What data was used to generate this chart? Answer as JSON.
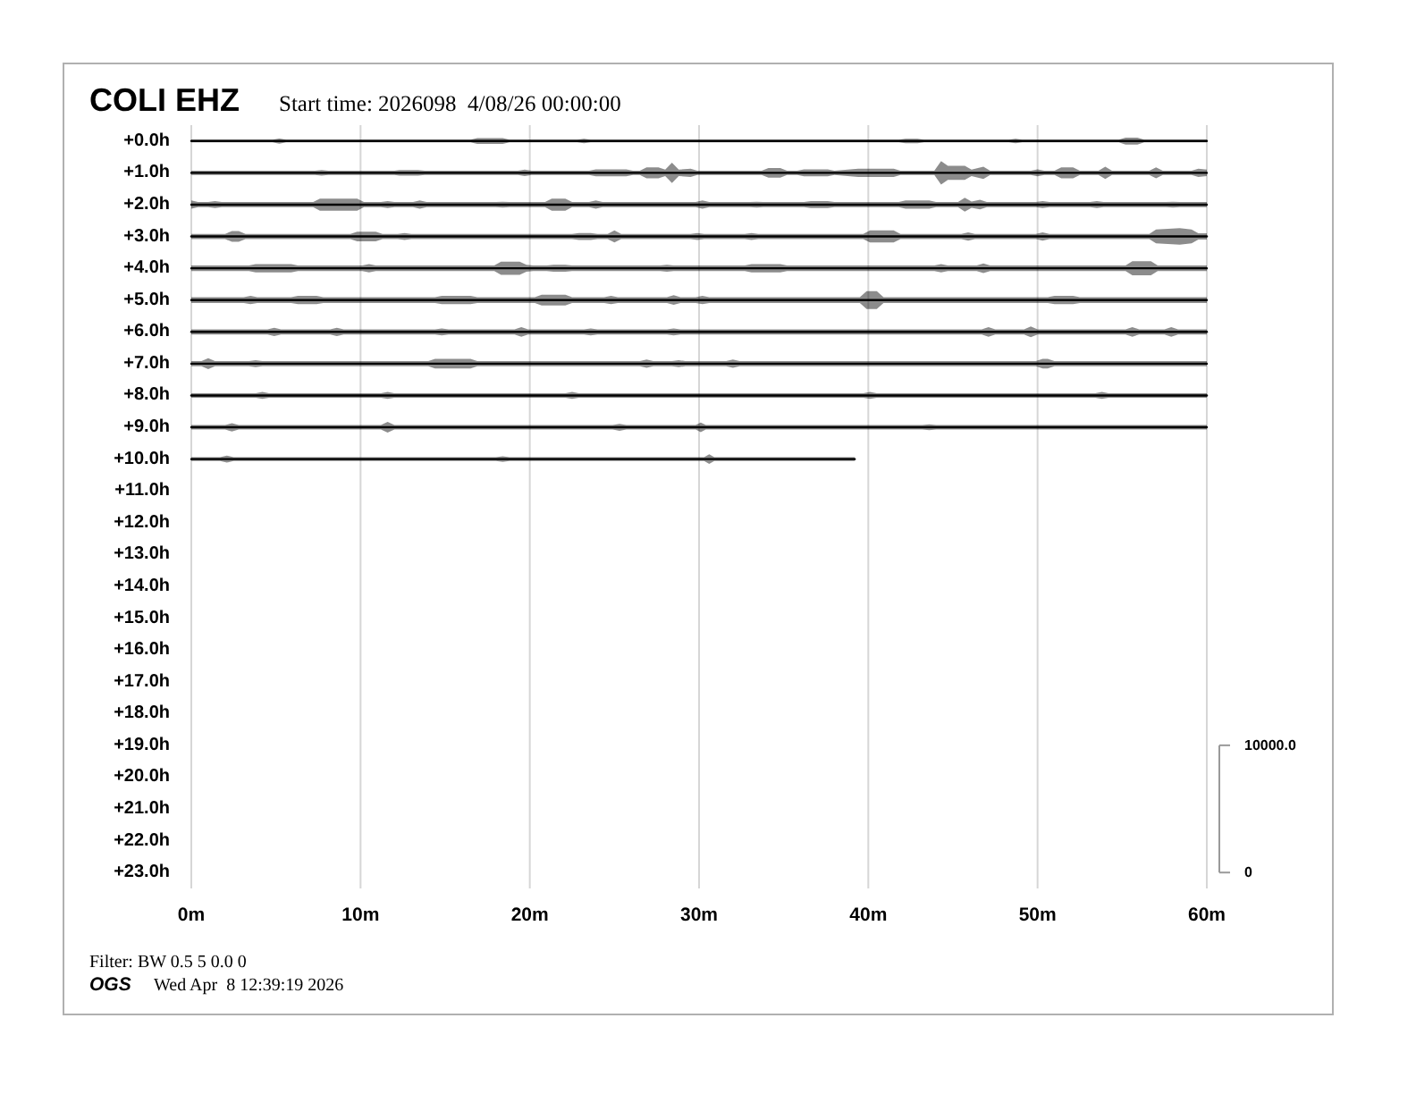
{
  "chart_data": {
    "type": "line",
    "title": "COLI EHZ",
    "subtitle": "Start time: 2026098  4/08/26 00:00:00",
    "annotations": [
      "Filter: BW 0.5 5 0.0 0",
      "OGS",
      "Wed Apr  8 12:39:19 2026"
    ],
    "xlim": [
      0,
      60
    ],
    "xticks": [
      {
        "value": 0,
        "label": "0m"
      },
      {
        "value": 10,
        "label": "10m"
      },
      {
        "value": 20,
        "label": "20m"
      },
      {
        "value": 30,
        "label": "30m"
      },
      {
        "value": 40,
        "label": "40m"
      },
      {
        "value": 50,
        "label": "50m"
      },
      {
        "value": 60,
        "label": "60m"
      }
    ],
    "ylim": [
      23.5,
      -0.5
    ],
    "yticks": [
      {
        "value": 0,
        "label": "+0.0h"
      },
      {
        "value": 1,
        "label": "+1.0h"
      },
      {
        "value": 2,
        "label": "+2.0h"
      },
      {
        "value": 3,
        "label": "+3.0h"
      },
      {
        "value": 4,
        "label": "+4.0h"
      },
      {
        "value": 5,
        "label": "+5.0h"
      },
      {
        "value": 6,
        "label": "+6.0h"
      },
      {
        "value": 7,
        "label": "+7.0h"
      },
      {
        "value": 8,
        "label": "+8.0h"
      },
      {
        "value": 9,
        "label": "+9.0h"
      },
      {
        "value": 10,
        "label": "+10.0h"
      },
      {
        "value": 11,
        "label": "+11.0h"
      },
      {
        "value": 12,
        "label": "+12.0h"
      },
      {
        "value": 13,
        "label": "+13.0h"
      },
      {
        "value": 14,
        "label": "+14.0h"
      },
      {
        "value": 15,
        "label": "+15.0h"
      },
      {
        "value": 16,
        "label": "+16.0h"
      },
      {
        "value": 17,
        "label": "+17.0h"
      },
      {
        "value": 18,
        "label": "+18.0h"
      },
      {
        "value": 19,
        "label": "+19.0h"
      },
      {
        "value": 20,
        "label": "+20.0h"
      },
      {
        "value": 21,
        "label": "+21.0h"
      },
      {
        "value": 22,
        "label": "+22.0h"
      },
      {
        "value": 23,
        "label": "+23.0h"
      }
    ],
    "y2lim": [
      -1250,
      58750
    ],
    "y2ticks": [
      0,
      {
        "value": 10000,
        "label": "10000.0"
      }
    ],
    "grid": "x",
    "series": [
      {
        "color": "#000000",
        "x": [
          0,
          4.8,
          5.2,
          5.6,
          16.5,
          16.9,
          18.4,
          18.8,
          22.8,
          23.2,
          23.6,
          41.8,
          42.2,
          42.9,
          43.3,
          48.3,
          48.7,
          49.1,
          54.8,
          55.2,
          55.9,
          56.3,
          60
        ],
        "values": [
          0,
          0,
          0,
          0,
          0,
          0,
          0,
          0,
          0,
          0,
          0,
          0,
          0,
          0,
          0,
          0,
          0,
          0,
          0,
          0,
          0,
          0,
          0
        ],
        "lower": [
          -0.04,
          -0.04,
          -0.08,
          -0.04,
          -0.04,
          -0.09,
          -0.09,
          -0.04,
          -0.04,
          -0.07,
          -0.04,
          -0.04,
          -0.07,
          -0.07,
          -0.04,
          -0.04,
          -0.07,
          -0.04,
          -0.04,
          -0.11,
          -0.11,
          -0.04,
          -0.04
        ],
        "upper": [
          0.04,
          0.04,
          0.08,
          0.04,
          0.04,
          0.09,
          0.09,
          0.04,
          0.04,
          0.07,
          0.04,
          0.04,
          0.07,
          0.07,
          0.04,
          0.04,
          0.07,
          0.04,
          0.04,
          0.11,
          0.11,
          0.04,
          0.04
        ]
      },
      {
        "color": "#000000",
        "x": [
          0,
          7.3,
          7.7,
          8.1,
          12,
          12.3,
          13.4,
          13.8,
          19.3,
          19.7,
          20.1,
          23.5,
          23.9,
          25.7,
          26.1,
          26.5,
          26.9,
          27.6,
          28,
          28.4,
          28.8,
          29.5,
          29.9,
          33.7,
          34.1,
          34.8,
          35.2,
          35.8,
          36.2,
          37.6,
          38,
          39.4,
          41.5,
          41.9,
          43.9,
          44.3,
          44.7,
          45.7,
          46.1,
          46.8,
          47.2,
          49.6,
          50,
          50.4,
          51,
          51.4,
          52.1,
          52.5,
          53.6,
          54,
          54.4,
          56.6,
          57,
          57.4,
          59.1,
          59.5,
          60
        ],
        "values": [
          1,
          1,
          1,
          1,
          1,
          1,
          1,
          1,
          1,
          1,
          1,
          1,
          1,
          1,
          1,
          1,
          1,
          1,
          1,
          1,
          1,
          1,
          1,
          1,
          1,
          1,
          1,
          1,
          1,
          1,
          1,
          1,
          1,
          1,
          1,
          1,
          1,
          1,
          1,
          1,
          1,
          1,
          1,
          1,
          1,
          1,
          1,
          1,
          1,
          1,
          1,
          1,
          1,
          1,
          1,
          1,
          1
        ],
        "lower": [
          0.93,
          0.93,
          0.91,
          0.93,
          0.93,
          0.91,
          0.91,
          0.93,
          0.93,
          0.9,
          0.93,
          0.93,
          0.89,
          0.89,
          0.93,
          0.93,
          0.83,
          0.83,
          0.9,
          0.68,
          0.9,
          0.87,
          0.93,
          0.93,
          0.85,
          0.85,
          0.93,
          0.93,
          0.89,
          0.89,
          0.93,
          0.87,
          0.87,
          0.93,
          0.93,
          0.63,
          0.78,
          0.78,
          0.9,
          0.81,
          0.93,
          0.93,
          0.89,
          0.93,
          0.93,
          0.83,
          0.83,
          0.93,
          0.93,
          0.81,
          0.93,
          0.93,
          0.83,
          0.93,
          0.93,
          0.87,
          0.9
        ],
        "upper": [
          1.07,
          1.07,
          1.09,
          1.07,
          1.07,
          1.09,
          1.09,
          1.07,
          1.07,
          1.1,
          1.07,
          1.07,
          1.11,
          1.11,
          1.07,
          1.07,
          1.17,
          1.17,
          1.1,
          1.32,
          1.1,
          1.13,
          1.07,
          1.07,
          1.15,
          1.15,
          1.07,
          1.07,
          1.11,
          1.11,
          1.07,
          1.13,
          1.13,
          1.07,
          1.07,
          1.37,
          1.22,
          1.22,
          1.1,
          1.19,
          1.07,
          1.07,
          1.11,
          1.07,
          1.07,
          1.17,
          1.17,
          1.07,
          1.07,
          1.19,
          1.07,
          1.07,
          1.17,
          1.07,
          1.07,
          1.13,
          1.1
        ]
      },
      {
        "color": "#000000",
        "x": [
          0,
          0.4,
          1,
          1.4,
          1.8,
          7.2,
          7.6,
          9.8,
          10.2,
          11.2,
          11.6,
          12,
          13.1,
          13.5,
          13.9,
          18,
          18.4,
          18.8,
          20.9,
          21.3,
          22.1,
          22.5,
          23.5,
          23.9,
          24.3,
          29.8,
          30.2,
          30.6,
          33,
          33.4,
          33.8,
          36.2,
          36.6,
          37.6,
          38,
          41.8,
          42.2,
          43.6,
          44,
          45.3,
          45.7,
          46.1,
          46.6,
          47,
          49.9,
          50.3,
          50.7,
          53.1,
          53.5,
          53.9,
          57.6,
          58,
          58.4,
          60
        ],
        "values": [
          2,
          2,
          2,
          2,
          2,
          2,
          2,
          2,
          2,
          2,
          2,
          2,
          2,
          2,
          2,
          2,
          2,
          2,
          2,
          2,
          2,
          2,
          2,
          2,
          2,
          2,
          2,
          2,
          2,
          2,
          2,
          2,
          2,
          2,
          2,
          2,
          2,
          2,
          2,
          2,
          2,
          2,
          2,
          2,
          2,
          2,
          2,
          2,
          2,
          2,
          2,
          2,
          2,
          2
        ],
        "lower": [
          1.87,
          1.92,
          1.92,
          1.89,
          1.92,
          1.92,
          1.81,
          1.81,
          1.92,
          1.92,
          1.89,
          1.92,
          1.92,
          1.87,
          1.92,
          1.92,
          1.91,
          1.92,
          1.92,
          1.81,
          1.81,
          1.92,
          1.92,
          1.87,
          1.92,
          1.92,
          1.87,
          1.92,
          1.92,
          1.91,
          1.92,
          1.92,
          1.89,
          1.89,
          1.92,
          1.92,
          1.87,
          1.87,
          1.92,
          1.92,
          1.78,
          1.9,
          1.85,
          1.92,
          1.92,
          1.89,
          1.92,
          1.92,
          1.89,
          1.92,
          1.92,
          1.91,
          1.92,
          1.92
        ],
        "upper": [
          2.13,
          2.08,
          2.08,
          2.11,
          2.08,
          2.08,
          2.19,
          2.19,
          2.08,
          2.08,
          2.11,
          2.08,
          2.08,
          2.13,
          2.08,
          2.08,
          2.09,
          2.08,
          2.08,
          2.19,
          2.19,
          2.08,
          2.08,
          2.13,
          2.08,
          2.08,
          2.13,
          2.08,
          2.08,
          2.09,
          2.08,
          2.08,
          2.11,
          2.11,
          2.08,
          2.08,
          2.13,
          2.13,
          2.08,
          2.08,
          2.22,
          2.1,
          2.15,
          2.08,
          2.08,
          2.11,
          2.08,
          2.08,
          2.11,
          2.08,
          2.08,
          2.09,
          2.08,
          2.08
        ]
      },
      {
        "color": "#000000",
        "x": [
          0,
          2,
          2.4,
          2.8,
          3.2,
          9.4,
          9.8,
          10.9,
          11.3,
          12.2,
          12.6,
          13,
          22.5,
          22.9,
          23.6,
          24,
          24.6,
          25,
          25.4,
          29.5,
          29.9,
          30.3,
          32.7,
          33.1,
          33.5,
          39.7,
          40.1,
          41.5,
          41.9,
          45.5,
          45.9,
          46.3,
          49.9,
          50.3,
          50.7,
          56.6,
          57,
          58.4,
          59.1,
          59.5,
          60
        ],
        "values": [
          3,
          3,
          3,
          3,
          3,
          3,
          3,
          3,
          3,
          3,
          3,
          3,
          3,
          3,
          3,
          3,
          3,
          3,
          3,
          3,
          3,
          3,
          3,
          3,
          3,
          3,
          3,
          3,
          3,
          3,
          3,
          3,
          3,
          3,
          3,
          3,
          3,
          3,
          3,
          3,
          3
        ],
        "lower": [
          2.92,
          2.92,
          2.83,
          2.83,
          2.92,
          2.92,
          2.85,
          2.85,
          2.92,
          2.92,
          2.89,
          2.92,
          2.92,
          2.89,
          2.89,
          2.92,
          2.92,
          2.81,
          2.92,
          2.92,
          2.89,
          2.92,
          2.92,
          2.89,
          2.92,
          2.92,
          2.81,
          2.81,
          2.92,
          2.92,
          2.87,
          2.92,
          2.92,
          2.87,
          2.92,
          2.92,
          2.78,
          2.74,
          2.78,
          2.9,
          2.9
        ],
        "upper": [
          3.08,
          3.08,
          3.17,
          3.17,
          3.08,
          3.08,
          3.15,
          3.15,
          3.08,
          3.08,
          3.11,
          3.08,
          3.08,
          3.11,
          3.11,
          3.08,
          3.08,
          3.19,
          3.08,
          3.08,
          3.11,
          3.08,
          3.08,
          3.11,
          3.08,
          3.08,
          3.19,
          3.19,
          3.08,
          3.08,
          3.13,
          3.08,
          3.08,
          3.13,
          3.08,
          3.08,
          3.22,
          3.26,
          3.22,
          3.1,
          3.1
        ]
      },
      {
        "color": "#000000",
        "x": [
          0,
          3.4,
          3.8,
          5.9,
          6.3,
          10.1,
          10.5,
          10.9,
          17.9,
          18.3,
          19.4,
          19.8,
          20.2,
          21,
          21.4,
          22.1,
          22.5,
          27.7,
          28.1,
          28.5,
          32.7,
          33.1,
          34.8,
          35.2,
          43.9,
          44.3,
          44.7,
          46.4,
          46.8,
          47.2,
          55.2,
          55.6,
          56.7,
          57.1,
          60
        ],
        "values": [
          4,
          4,
          4,
          4,
          4,
          4,
          4,
          4,
          4,
          4,
          4,
          4,
          4,
          4,
          4,
          4,
          4,
          4,
          4,
          4,
          4,
          4,
          4,
          4,
          4,
          4,
          4,
          4,
          4,
          4,
          4,
          4,
          4,
          4,
          4
        ],
        "lower": [
          3.91,
          3.91,
          3.87,
          3.87,
          3.91,
          3.91,
          3.87,
          3.91,
          3.91,
          3.79,
          3.79,
          3.89,
          3.91,
          3.91,
          3.89,
          3.89,
          3.91,
          3.91,
          3.89,
          3.91,
          3.91,
          3.87,
          3.87,
          3.91,
          3.91,
          3.87,
          3.91,
          3.91,
          3.85,
          3.91,
          3.91,
          3.78,
          3.78,
          3.91,
          3.91
        ],
        "upper": [
          4.09,
          4.09,
          4.13,
          4.13,
          4.09,
          4.09,
          4.13,
          4.09,
          4.09,
          4.21,
          4.21,
          4.11,
          4.09,
          4.09,
          4.11,
          4.11,
          4.09,
          4.09,
          4.11,
          4.09,
          4.09,
          4.13,
          4.13,
          4.09,
          4.09,
          4.13,
          4.09,
          4.09,
          4.15,
          4.09,
          4.09,
          4.22,
          4.22,
          4.09,
          4.09
        ]
      },
      {
        "color": "#000000",
        "x": [
          0,
          3.1,
          3.5,
          3.9,
          5.9,
          6.3,
          7.4,
          7.8,
          14.4,
          14.8,
          16.5,
          16.9,
          20.3,
          20.7,
          22.1,
          22.5,
          24.4,
          24.8,
          25.2,
          28.1,
          28.5,
          28.9,
          29.8,
          30.2,
          30.6,
          39.5,
          39.9,
          40.5,
          40.9,
          50.6,
          51,
          52.1,
          52.5,
          60
        ],
        "values": [
          5,
          5,
          5,
          5,
          5,
          5,
          5,
          5,
          5,
          5,
          5,
          5,
          5,
          5,
          5,
          5,
          5,
          5,
          5,
          5,
          5,
          5,
          5,
          5,
          5,
          5,
          5,
          5,
          5,
          5,
          5,
          5,
          5,
          5
        ],
        "lower": [
          4.91,
          4.91,
          4.87,
          4.91,
          4.91,
          4.87,
          4.87,
          4.91,
          4.91,
          4.87,
          4.87,
          4.91,
          4.91,
          4.83,
          4.83,
          4.91,
          4.91,
          4.87,
          4.91,
          4.91,
          4.85,
          4.91,
          4.91,
          4.87,
          4.91,
          4.91,
          4.72,
          4.72,
          4.91,
          4.91,
          4.87,
          4.87,
          4.91,
          4.91
        ],
        "upper": [
          5.09,
          5.09,
          5.13,
          5.09,
          5.09,
          5.13,
          5.13,
          5.09,
          5.09,
          5.13,
          5.13,
          5.09,
          5.09,
          5.17,
          5.17,
          5.09,
          5.09,
          5.13,
          5.09,
          5.09,
          5.15,
          5.09,
          5.09,
          5.13,
          5.09,
          5.09,
          5.28,
          5.28,
          5.09,
          5.09,
          5.13,
          5.13,
          5.09,
          5.09
        ]
      },
      {
        "color": "#000000",
        "x": [
          0,
          4.5,
          4.9,
          5.3,
          8.2,
          8.6,
          9,
          14.4,
          14.8,
          15.2,
          19.1,
          19.5,
          19.9,
          23.2,
          23.6,
          24,
          28.1,
          28.5,
          28.9,
          46.7,
          47.1,
          47.5,
          49.2,
          49.6,
          50,
          55.2,
          55.6,
          56,
          57.5,
          57.9,
          58.3,
          60
        ],
        "values": [
          6,
          6,
          6,
          6,
          6,
          6,
          6,
          6,
          6,
          6,
          6,
          6,
          6,
          6,
          6,
          6,
          6,
          6,
          6,
          6,
          6,
          6,
          6,
          6,
          6,
          6,
          6,
          6,
          6,
          6,
          6,
          6
        ],
        "lower": [
          5.92,
          5.92,
          5.87,
          5.92,
          5.92,
          5.87,
          5.92,
          5.92,
          5.89,
          5.92,
          5.92,
          5.85,
          5.92,
          5.92,
          5.89,
          5.92,
          5.92,
          5.89,
          5.92,
          5.92,
          5.85,
          5.92,
          5.92,
          5.83,
          5.92,
          5.92,
          5.85,
          5.92,
          5.92,
          5.85,
          5.92,
          5.92
        ],
        "upper": [
          6.08,
          6.08,
          6.13,
          6.08,
          6.08,
          6.13,
          6.08,
          6.08,
          6.11,
          6.08,
          6.08,
          6.15,
          6.08,
          6.08,
          6.11,
          6.08,
          6.08,
          6.11,
          6.08,
          6.08,
          6.15,
          6.08,
          6.08,
          6.17,
          6.08,
          6.08,
          6.15,
          6.08,
          6.08,
          6.15,
          6.08,
          6.08
        ]
      },
      {
        "color": "#000000",
        "x": [
          0,
          0.6,
          1,
          1.4,
          3.4,
          3.8,
          4.2,
          14,
          14.4,
          16.5,
          16.9,
          26.5,
          26.9,
          27.3,
          28.4,
          28.8,
          29.2,
          31.6,
          32,
          32.4,
          49.9,
          50.3,
          50.6,
          51,
          60
        ],
        "values": [
          7,
          7,
          7,
          7,
          7,
          7,
          7,
          7,
          7,
          7,
          7,
          7,
          7,
          7,
          7,
          7,
          7,
          7,
          7,
          7,
          7,
          7,
          7,
          7,
          7
        ],
        "lower": [
          6.92,
          6.92,
          6.83,
          6.92,
          6.92,
          6.89,
          6.92,
          6.92,
          6.85,
          6.85,
          6.92,
          6.92,
          6.87,
          6.92,
          6.92,
          6.89,
          6.92,
          6.92,
          6.87,
          6.92,
          6.92,
          6.85,
          6.85,
          6.92,
          6.92
        ],
        "upper": [
          7.08,
          7.08,
          7.17,
          7.08,
          7.08,
          7.11,
          7.08,
          7.08,
          7.15,
          7.15,
          7.08,
          7.08,
          7.13,
          7.08,
          7.08,
          7.11,
          7.08,
          7.08,
          7.13,
          7.08,
          7.08,
          7.15,
          7.15,
          7.08,
          7.08
        ]
      },
      {
        "color": "#000000",
        "x": [
          0,
          3.8,
          4.2,
          4.6,
          11.2,
          11.6,
          12,
          22.1,
          22.5,
          22.9,
          39.7,
          40.1,
          40.5,
          53.4,
          53.8,
          54.2,
          60
        ],
        "values": [
          8,
          8,
          8,
          8,
          8,
          8,
          8,
          8,
          8,
          8,
          8,
          8,
          8,
          8,
          8,
          8,
          8
        ],
        "lower": [
          7.93,
          7.93,
          7.89,
          7.93,
          7.93,
          7.89,
          7.93,
          7.93,
          7.89,
          7.93,
          7.93,
          7.89,
          7.93,
          7.93,
          7.89,
          7.93,
          7.93
        ],
        "upper": [
          8.07,
          8.07,
          8.11,
          8.07,
          8.07,
          8.11,
          8.07,
          8.07,
          8.11,
          8.07,
          8.07,
          8.11,
          8.07,
          8.07,
          8.11,
          8.07,
          8.07
        ]
      },
      {
        "color": "#000000",
        "x": [
          0,
          2,
          2.4,
          2.8,
          11.2,
          11.6,
          12,
          24.9,
          25.3,
          25.7,
          29.8,
          30.1,
          30.4,
          43.2,
          43.6,
          44,
          60
        ],
        "values": [
          9,
          9,
          9,
          9,
          9,
          9,
          9,
          9,
          9,
          9,
          9,
          9,
          9,
          9,
          9,
          9,
          9
        ],
        "lower": [
          8.93,
          8.93,
          8.87,
          8.93,
          8.93,
          8.83,
          8.93,
          8.93,
          8.89,
          8.93,
          8.93,
          8.85,
          8.93,
          8.93,
          8.91,
          8.93,
          8.93
        ],
        "upper": [
          9.07,
          9.07,
          9.13,
          9.07,
          9.07,
          9.17,
          9.07,
          9.07,
          9.11,
          9.07,
          9.07,
          9.15,
          9.07,
          9.07,
          9.09,
          9.07,
          9.07
        ]
      },
      {
        "color": "#000000",
        "x": [
          0,
          1.7,
          2.1,
          2.5,
          18,
          18.4,
          18.8,
          30.3,
          30.6,
          30.9,
          39.2
        ],
        "values": [
          10,
          10,
          10,
          10,
          10,
          10,
          10,
          10,
          10,
          10,
          10
        ],
        "lower": [
          9.94,
          9.94,
          9.89,
          9.94,
          9.94,
          9.91,
          9.94,
          9.94,
          9.85,
          9.94,
          9.94
        ],
        "upper": [
          10.06,
          10.06,
          10.11,
          10.06,
          10.06,
          10.09,
          10.06,
          10.06,
          10.15,
          10.06,
          10.06
        ]
      }
    ]
  }
}
